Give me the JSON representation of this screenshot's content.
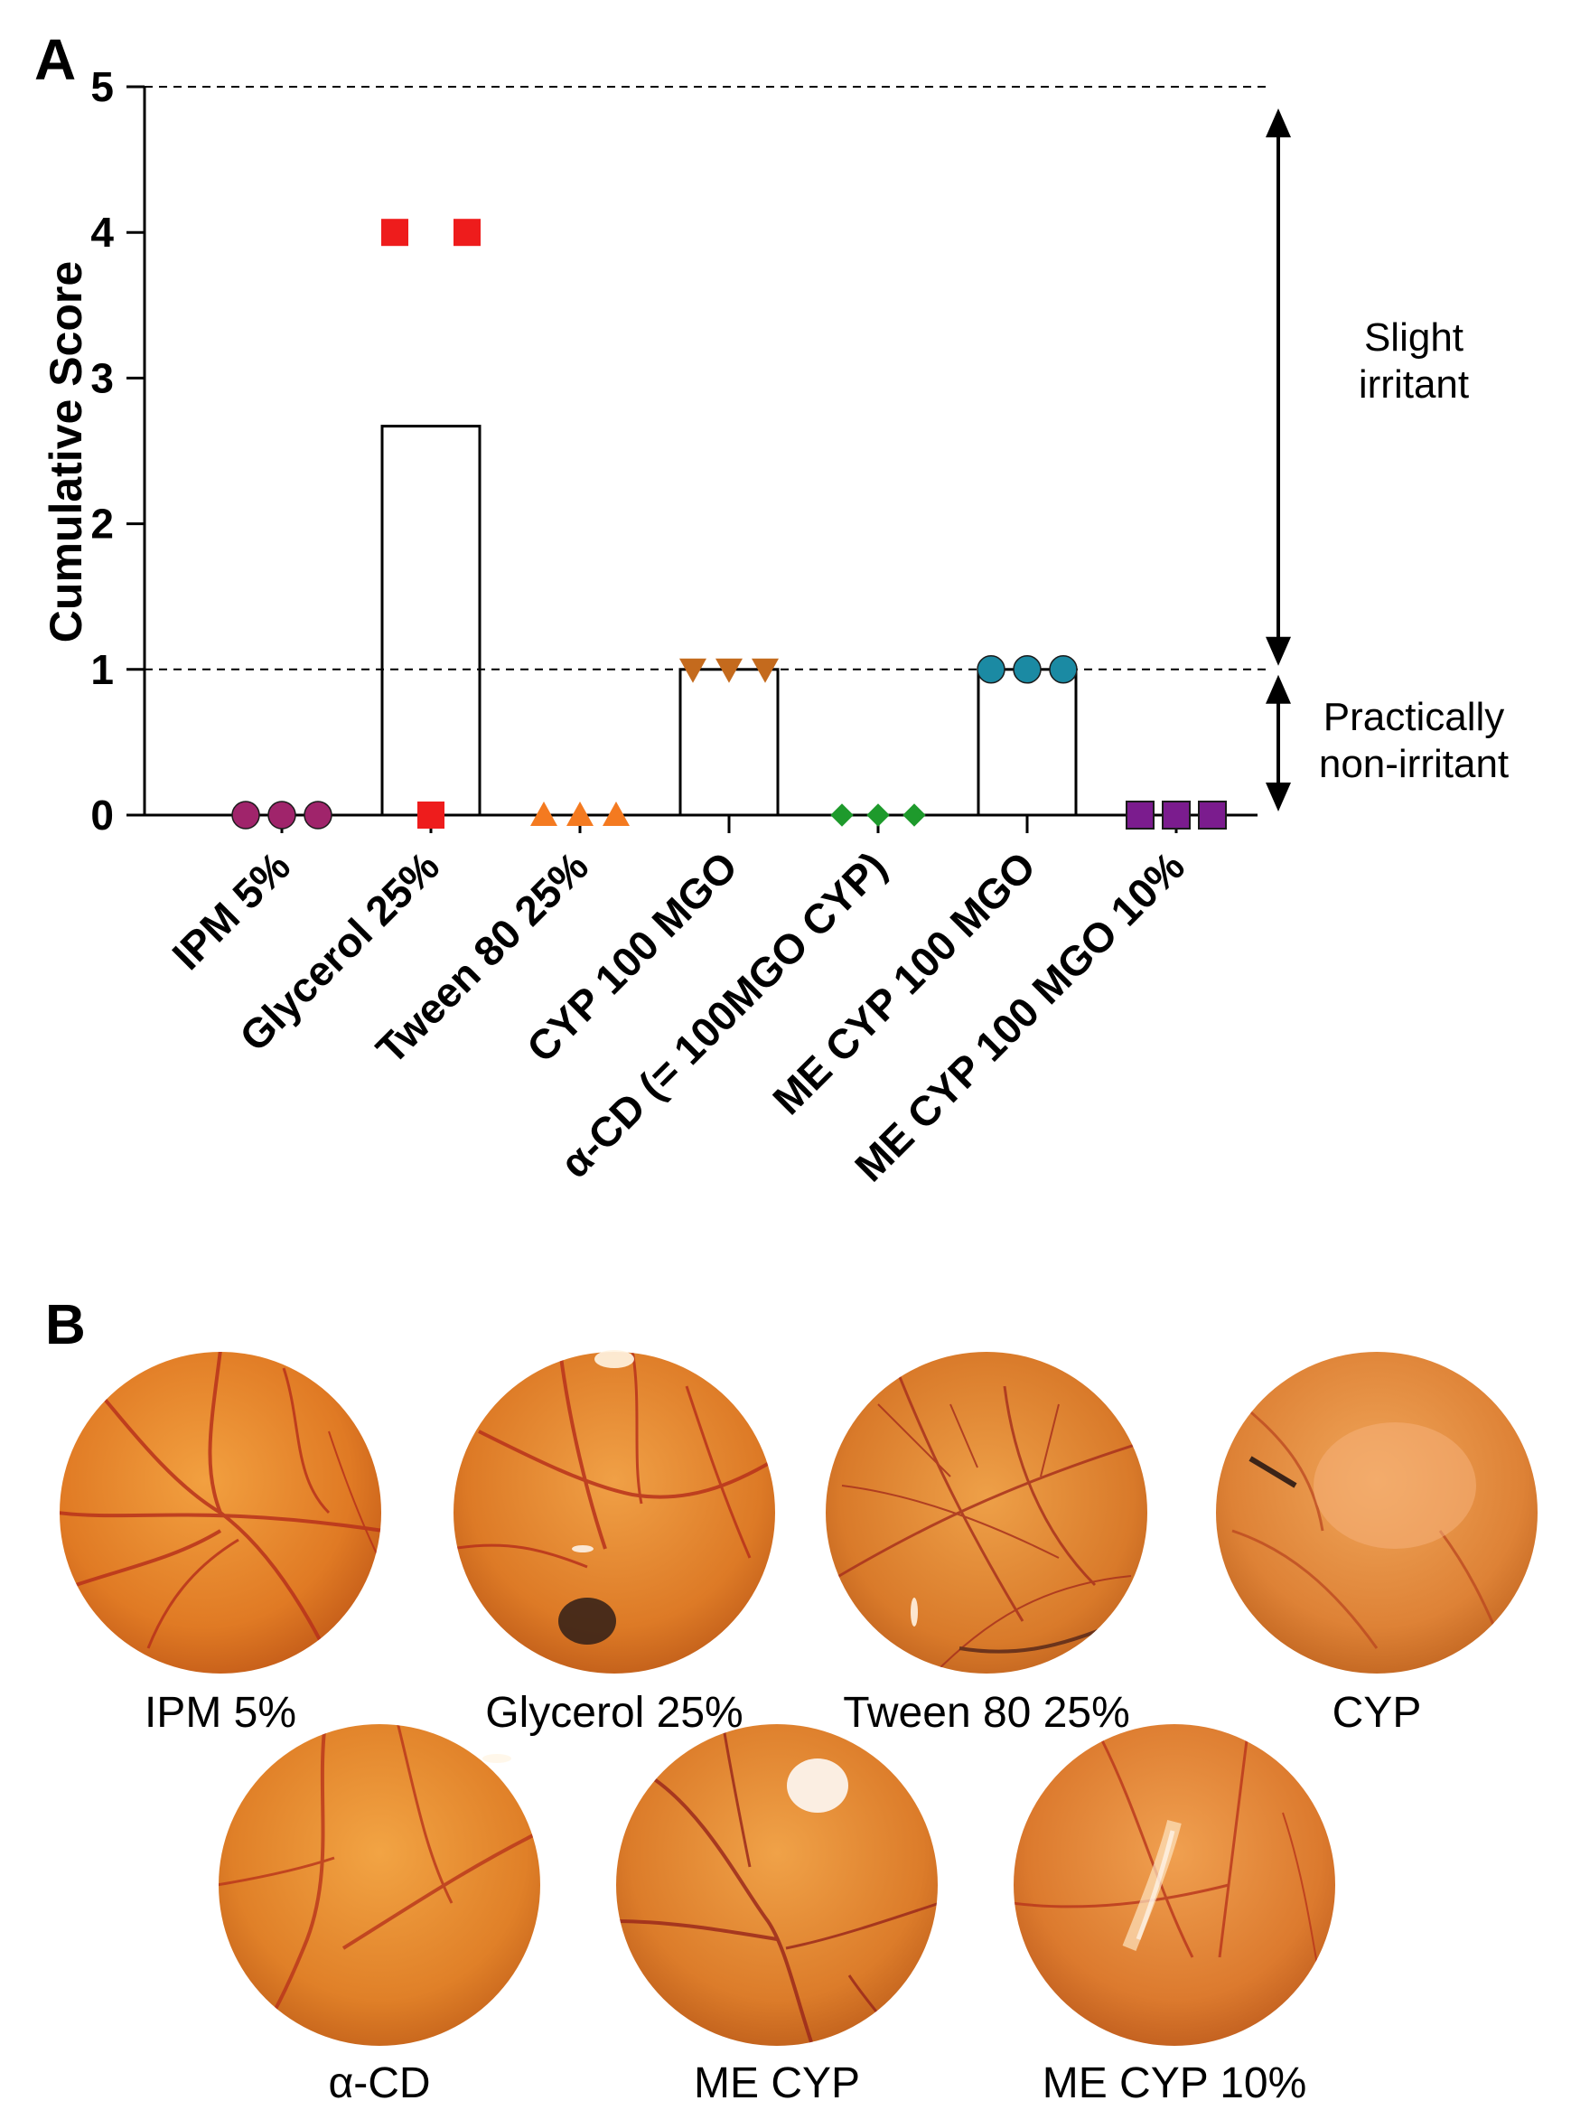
{
  "panel_a": {
    "label": "A"
  },
  "chart_data": {
    "type": "bar",
    "title": "",
    "xlabel": "",
    "ylabel": "Cumulative Score",
    "ylim": [
      0,
      5
    ],
    "yticks": [
      0,
      1,
      2,
      3,
      4,
      5
    ],
    "categories": [
      "IPM 5%",
      "Glycerol  25%",
      "Tween 80  25%",
      "CYP 100 MGO",
      "α-CD (= 100MGO CYP)",
      "ME CYP 100 MGO",
      "ME CYP 100 MGO  10%"
    ],
    "bar_values": [
      0,
      2.67,
      0,
      1,
      0,
      1,
      0
    ],
    "replicates": [
      {
        "name": "IPM 5%",
        "values": [
          0,
          0,
          0
        ],
        "marker": "circle",
        "color": "#a0246b"
      },
      {
        "name": "Glycerol  25%",
        "values": [
          4,
          0,
          4
        ],
        "marker": "square",
        "color": "#ee1c1c"
      },
      {
        "name": "Tween 80  25%",
        "values": [
          0,
          0,
          0
        ],
        "marker": "triangle-up",
        "color": "#f47a20"
      },
      {
        "name": "CYP 100 MGO",
        "values": [
          1,
          1,
          1
        ],
        "marker": "triangle-down",
        "color": "#c46a1d"
      },
      {
        "name": "α-CD (= 100MGO CYP)",
        "values": [
          0,
          0,
          0
        ],
        "marker": "diamond",
        "color": "#1e9a2c"
      },
      {
        "name": "ME CYP 100 MGO",
        "values": [
          1,
          1,
          1
        ],
        "marker": "circle",
        "color": "#1b8aa3"
      },
      {
        "name": "ME CYP 100 MGO  10%",
        "values": [
          0,
          0,
          0
        ],
        "marker": "square",
        "color": "#7b1c8e"
      }
    ],
    "reference_lines": [
      1,
      5
    ],
    "annotations": [
      {
        "text_lines": [
          "Slight",
          "irritant"
        ],
        "range": [
          1,
          5
        ]
      },
      {
        "text_lines": [
          "Practically",
          "non-irritant"
        ],
        "range": [
          0,
          1
        ]
      }
    ]
  },
  "panel_b": {
    "label": "B",
    "images": [
      {
        "caption": "IPM 5%"
      },
      {
        "caption": "Glycerol 25%"
      },
      {
        "caption": "Tween 80 25%"
      },
      {
        "caption": "CYP"
      },
      {
        "caption": "α-CD"
      },
      {
        "caption": "ME CYP"
      },
      {
        "caption": "ME CYP 10%"
      }
    ]
  }
}
